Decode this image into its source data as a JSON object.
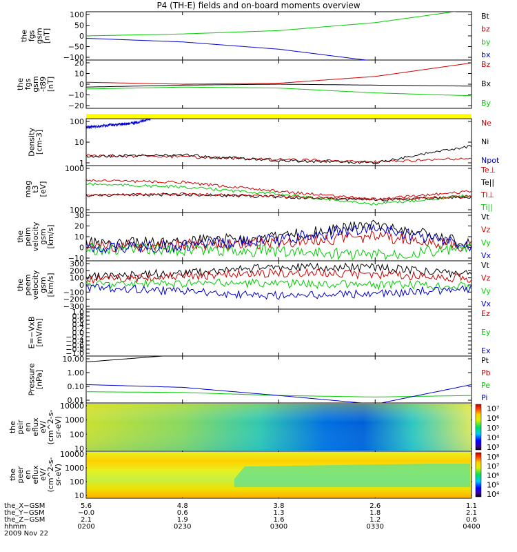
{
  "title": "P4 (TH-E) fields and on-board moments overview",
  "colors": {
    "black": "#000000",
    "red": "#cc0000",
    "green": "#00cc00",
    "blue": "#0000cc",
    "yellow": "#ffff00"
  },
  "panels": [
    {
      "id": "p1",
      "ylabel": [
        "the",
        "fgs",
        "gsm",
        "[nT]"
      ],
      "ticks": [
        "100",
        "50",
        "0",
        "−50",
        "−100"
      ],
      "legend": [
        {
          "text": "Bt",
          "color": "#000000"
        },
        {
          "text": "bz",
          "color": "#cc0000"
        },
        {
          "text": "by",
          "color": "#00cc00"
        },
        {
          "text": "bx",
          "color": "#0000cc"
        }
      ]
    },
    {
      "id": "p2",
      "ylabel": [
        "the",
        "fgs",
        "gsm",
        "-t89",
        "[nT]"
      ],
      "ticks": [
        "20",
        "10",
        "0",
        "−10",
        "−20"
      ],
      "legend": [
        {
          "text": "Bz",
          "color": "#cc0000"
        },
        {
          "text": "Bx",
          "color": "#000000"
        },
        {
          "text": "By",
          "color": "#00cc00"
        }
      ]
    },
    {
      "id": "p3",
      "ylabel": [
        "Density",
        "[cm-3]"
      ],
      "ticks": [
        "100",
        "10",
        "1"
      ],
      "legend": [
        {
          "text": "Ne",
          "color": "#cc0000"
        },
        {
          "text": "Ni",
          "color": "#000000"
        },
        {
          "text": "Npot",
          "color": "#0000cc"
        }
      ]
    },
    {
      "id": "p4",
      "ylabel": [
        "mag",
        "t3",
        "[eV]"
      ],
      "ticks": [
        "1000",
        "100"
      ],
      "legend": [
        {
          "text": "Te⊥",
          "color": "#cc0000"
        },
        {
          "text": "Te||",
          "color": "#000000"
        },
        {
          "text": "Ti⊥",
          "color": "#cc0000"
        },
        {
          "text": "Ti||",
          "color": "#00cc00"
        }
      ]
    },
    {
      "id": "p5",
      "ylabel": [
        "the",
        "peim",
        "velocity",
        "gsm",
        "[km/s]"
      ],
      "ticks": [
        "30",
        "20",
        "10",
        "0",
        "−10"
      ],
      "legend": [
        {
          "text": "Vt",
          "color": "#000000"
        },
        {
          "text": "Vz",
          "color": "#cc0000"
        },
        {
          "text": "Vy",
          "color": "#00cc00"
        },
        {
          "text": "Vx",
          "color": "#0000cc"
        }
      ]
    },
    {
      "id": "p6",
      "ylabel": [
        "the",
        "peem",
        "velocity",
        "gsm",
        "[km/s]"
      ],
      "ticks": [
        "300",
        "200",
        "100",
        "0",
        "−100",
        "−200",
        "−300"
      ],
      "legend": [
        {
          "text": "Vt",
          "color": "#000000"
        },
        {
          "text": "Vz",
          "color": "#cc0000"
        },
        {
          "text": "Vy",
          "color": "#00cc00"
        },
        {
          "text": "Vx",
          "color": "#0000cc"
        }
      ]
    },
    {
      "id": "p7",
      "ylabel": [
        "E=−VxB",
        "[mV/m]"
      ],
      "ticks": [
        "1.0",
        "0.8",
        "0.6",
        "0.4",
        "0.2",
        "0.0",
        "−0.2",
        "−0.4",
        "−0.6",
        "−0.8",
        "−1.0"
      ],
      "legend": [
        {
          "text": "Ez",
          "color": "#cc0000"
        },
        {
          "text": "Ey",
          "color": "#00cc00"
        },
        {
          "text": "Ex",
          "color": "#0000cc"
        }
      ]
    },
    {
      "id": "p8",
      "ylabel": [
        "Pressure",
        "[nPa]"
      ],
      "ticks": [
        "10.00",
        "1.00",
        "0.10",
        "0.01"
      ],
      "legend": [
        {
          "text": "Pt",
          "color": "#000000"
        },
        {
          "text": "Pb",
          "color": "#cc0000"
        },
        {
          "text": "Pe",
          "color": "#00cc00"
        },
        {
          "text": "Pi",
          "color": "#0000cc"
        }
      ]
    },
    {
      "id": "p9",
      "ylabel": [
        "the",
        "peir",
        "en",
        "eflux",
        "eV/",
        "(cm^2-s-",
        "sr-eV)"
      ],
      "ticks": [
        "10000",
        "1000",
        "100",
        "10"
      ],
      "colorbar": [
        "10⁷",
        "10⁶",
        "10⁵",
        "10⁴",
        "10³"
      ]
    },
    {
      "id": "p10",
      "ylabel": [
        "the",
        "peer",
        "en",
        "eflux",
        "eV/",
        "(cm^2-s-",
        "sr-eV)"
      ],
      "ticks": [
        "10000",
        "1000",
        "100",
        "10"
      ],
      "colorbar": [
        "10⁸",
        "10⁷",
        "10⁶",
        "10⁵",
        "10⁴"
      ]
    }
  ],
  "footer": {
    "rows": [
      {
        "label": "the_X−GSM",
        "values": [
          "5.6",
          "4.8",
          "3.8",
          "2.6",
          "1.1"
        ]
      },
      {
        "label": "the_Y−GSM",
        "values": [
          "−0.0",
          "0.6",
          "1.3",
          "1.8",
          "2.1"
        ]
      },
      {
        "label": "the_Z−GSM",
        "values": [
          "2.1",
          "1.9",
          "1.6",
          "1.2",
          "0.6"
        ]
      },
      {
        "label": "hhmm",
        "values": [
          "0200",
          "0230",
          "0300",
          "0330",
          "0400"
        ]
      }
    ],
    "date": "2009 Nov 22"
  },
  "chart_data": {
    "type": "line",
    "title": "P4 (TH-E) fields and on-board moments overview",
    "x": [
      "0200",
      "0230",
      "0300",
      "0330",
      "0400"
    ],
    "xlabel": "hhmm",
    "date": "2009 Nov 22",
    "panels": [
      {
        "ylabel": "the fgs gsm [nT]",
        "ylim": [
          -100,
          100
        ],
        "series": [
          {
            "name": "bx",
            "x": [
              "0200",
              "0230",
              "0300",
              "0330"
            ],
            "values": [
              -10,
              -25,
              -55,
              -105
            ]
          },
          {
            "name": "by",
            "x": [
              "0200",
              "0230",
              "0300",
              "0330",
              "0400"
            ],
            "values": [
              0,
              8,
              22,
              55,
              110
            ]
          }
        ]
      },
      {
        "ylabel": "the fgs gsm-t89 [nT]",
        "ylim": [
          -25,
          25
        ],
        "series": [
          {
            "name": "Bz",
            "x": [
              "0200",
              "0230",
              "0300",
              "0330",
              "0400"
            ],
            "values": [
              2,
              0,
              1,
              8,
              22
            ]
          },
          {
            "name": "Bx",
            "x": [
              "0200",
              "0230",
              "0300",
              "0330",
              "0400"
            ],
            "values": [
              -3,
              -1,
              0,
              -1,
              -2
            ]
          },
          {
            "name": "By",
            "x": [
              "0200",
              "0230",
              "0300",
              "0330",
              "0400"
            ],
            "values": [
              -5,
              -3,
              -4,
              -9,
              -12
            ]
          }
        ]
      },
      {
        "ylabel": "Density [cm-3]",
        "log": true,
        "ylim": [
          0.3,
          200
        ],
        "series": [
          {
            "name": "Ne",
            "x": [
              "0200",
              "0230",
              "0300",
              "0330",
              "0400"
            ],
            "values": [
              1.2,
              1.0,
              0.7,
              0.5,
              0.8
            ]
          },
          {
            "name": "Ni",
            "x": [
              "0200",
              "0230",
              "0300",
              "0330",
              "0400"
            ],
            "values": [
              1.1,
              1.3,
              0.6,
              0.45,
              4.5
            ]
          },
          {
            "name": "Npot",
            "x": [
              "0200",
              "0215",
              "0220"
            ],
            "values": [
              60,
              110,
              200
            ]
          }
        ]
      },
      {
        "ylabel": "mag t3 [eV]",
        "log": true,
        "ylim": [
          60,
          3000
        ],
        "series": [
          {
            "name": "Te||",
            "x": [
              "0200",
              "0230",
              "0300",
              "0330",
              "0400"
            ],
            "values": [
              250,
              270,
              220,
              170,
              220
            ]
          },
          {
            "name": "Ti⊥",
            "x": [
              "0200",
              "0230",
              "0300",
              "0330",
              "0400"
            ],
            "values": [
              900,
              750,
              350,
              180,
              350
            ]
          },
          {
            "name": "Ti||",
            "x": [
              "0200",
              "0230",
              "0300",
              "0330",
              "0400"
            ],
            "values": [
              650,
              500,
              280,
              120,
              250
            ]
          },
          {
            "name": "Te⊥",
            "x": [
              "0200",
              "0230",
              "0300",
              "0330",
              "0400"
            ],
            "values": [
              260,
              280,
              230,
              180,
              230
            ]
          }
        ]
      },
      {
        "ylabel": "the peim velocity gsm [km/s]",
        "ylim": [
          -10,
          30
        ],
        "series": [
          {
            "name": "Vt",
            "x": [
              "0200",
              "0230",
              "0300",
              "0330",
              "0400"
            ],
            "values": [
              5,
              6,
              10,
              20,
              4
            ]
          },
          {
            "name": "Vz",
            "x": [
              "0200",
              "0230",
              "0300",
              "0330",
              "0400"
            ],
            "values": [
              2,
              3,
              5,
              10,
              2
            ]
          },
          {
            "name": "Vy",
            "x": [
              "0200",
              "0230",
              "0300",
              "0330",
              "0400"
            ],
            "values": [
              0,
              -1,
              -2,
              -5,
              0
            ]
          },
          {
            "name": "Vx",
            "x": [
              "0200",
              "0230",
              "0300",
              "0330",
              "0400"
            ],
            "values": [
              1,
              2,
              8,
              17,
              2
            ]
          }
        ]
      },
      {
        "ylabel": "the peem velocity gsm [km/s]",
        "ylim": [
          -300,
          300
        ],
        "series": [
          {
            "name": "Vt",
            "x": [
              "0200",
              "0230",
              "0300",
              "0330",
              "0400"
            ],
            "values": [
              100,
              150,
              220,
              220,
              120
            ]
          },
          {
            "name": "Vz",
            "x": [
              "0200",
              "0230",
              "0300",
              "0330",
              "0400"
            ],
            "values": [
              70,
              110,
              150,
              130,
              80
            ]
          },
          {
            "name": "Vy",
            "x": [
              "0200",
              "0230",
              "0300",
              "0330",
              "0400"
            ],
            "values": [
              10,
              20,
              20,
              0,
              -10
            ]
          },
          {
            "name": "Vx",
            "x": [
              "0200",
              "0230",
              "0300",
              "0330",
              "0400"
            ],
            "values": [
              -30,
              -80,
              -130,
              -110,
              -40
            ]
          }
        ]
      },
      {
        "ylabel": "E=−VxB [mV/m]",
        "ylim": [
          -1,
          1
        ],
        "series": []
      },
      {
        "ylabel": "Pressure [nPa]",
        "log": true,
        "ylim": [
          0.005,
          30
        ],
        "series": [
          {
            "name": "Pt",
            "x": [
              "0200",
              "0215",
              "0230"
            ],
            "values": [
              10,
              20,
              40
            ]
          },
          {
            "name": "Pe",
            "x": [
              "0200",
              "0230",
              "0300",
              "0330",
              "0400"
            ],
            "values": [
              0.04,
              0.035,
              0.02,
              0.015,
              0.02
            ]
          },
          {
            "name": "Pi",
            "x": [
              "0200",
              "0230",
              "0300",
              "0330",
              "0400"
            ],
            "values": [
              0.15,
              0.09,
              0.02,
              0.004,
              0.15
            ]
          }
        ]
      },
      {
        "ylabel": "the peir en eflux eV/(cm^2-s-sr-eV)",
        "type": "heatmap",
        "ylim": [
          10,
          20000
        ],
        "clim": [
          "10³",
          "10⁷"
        ]
      },
      {
        "ylabel": "the peer en eflux eV/(cm^2-s-sr-eV)",
        "type": "heatmap",
        "ylim": [
          10,
          20000
        ],
        "clim": [
          "10⁴",
          "10⁸"
        ]
      }
    ]
  }
}
